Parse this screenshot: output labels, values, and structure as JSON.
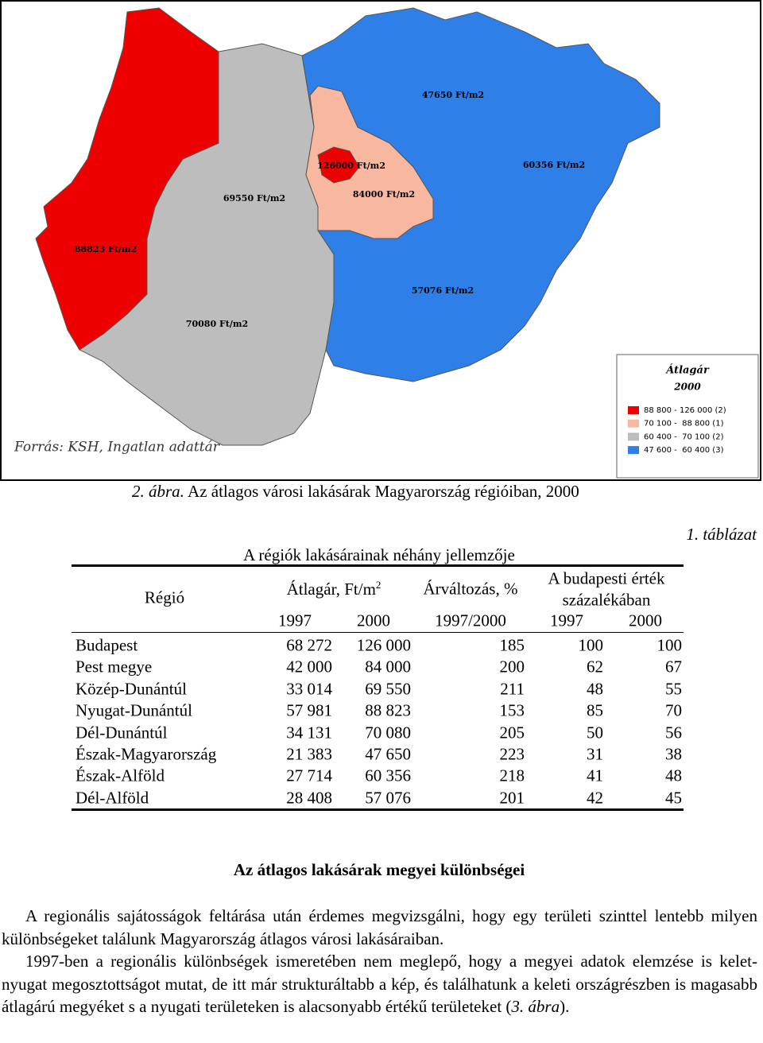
{
  "figure": {
    "map_labels": [
      "47650 Ft/m2",
      "126000 Ft/m2",
      "60356 Ft/m2",
      "69550 Ft/m2",
      "84000 Ft/m2",
      "88823 Ft/m2",
      "57076 Ft/m2",
      "70080 Ft/m2"
    ],
    "legend": {
      "title": "Átlagár",
      "year": "2000",
      "items": [
        "88 800 - 126 000 (2)",
        "70 100 -  88 800 (1)",
        "60 400 -  70 100 (2)",
        "47 600 -  60 400 (3)"
      ]
    },
    "source": "Forrás: KSH, Ingatlan adattár",
    "caption_label": "2. ábra.",
    "caption_text": "Az átlagos városi lakásárak Magyarország régióiban, 2000"
  },
  "table": {
    "label": "1. táblázat",
    "title": "A régiók lakásárainak néhány jellemzője",
    "header": {
      "region": "Régió",
      "price": "Átlagár, Ft/m",
      "price_sup": "2",
      "change": "Árváltozás, %",
      "budapest_1": "A budapesti érték",
      "budapest_2": "százalékában",
      "sub": [
        "1997",
        "2000",
        "1997/2000",
        "1997",
        "2000"
      ]
    },
    "rows": [
      [
        "Budapest",
        "68 272",
        "126 000",
        "185",
        "100",
        "100"
      ],
      [
        "Pest megye",
        "42 000",
        "84 000",
        "200",
        "62",
        "67"
      ],
      [
        "Közép-Dunántúl",
        "33 014",
        "69 550",
        "211",
        "48",
        "55"
      ],
      [
        "Nyugat-Dunántúl",
        "57 981",
        "88 823",
        "153",
        "85",
        "70"
      ],
      [
        "Dél-Dunántúl",
        "34 131",
        "70 080",
        "205",
        "50",
        "56"
      ],
      [
        "Észak-Magyarország",
        "21 383",
        "47 650",
        "223",
        "31",
        "38"
      ],
      [
        "Észak-Alföld",
        "27 714",
        "60 356",
        "218",
        "41",
        "48"
      ],
      [
        "Dél-Alföld",
        "28 408",
        "57 076",
        "201",
        "42",
        "45"
      ]
    ]
  },
  "section": {
    "heading": "Az átlagos lakásárak megyei különbségei",
    "paragraphs": [
      {
        "text": "A regionális sajátosságok feltárása után érdemes megvizsgálni, hogy egy területi szinttel lentebb milyen különbségeket találunk Magyarország átlagos városi lakásáraiban."
      },
      {
        "text": "1997-ben a regionális különbségek ismeretében nem meglepő, hogy a megyei adatok elemzése is kelet-nyugat megosztottságot mutat, de itt már strukturáltabb a kép, és találhatunk a keleti országrészben is magasabb átlagárú megyéket s a nyugati területeken is alacsonyabb értékű területeket (",
        "ref": "3. ábra",
        "end": ")."
      }
    ]
  }
}
